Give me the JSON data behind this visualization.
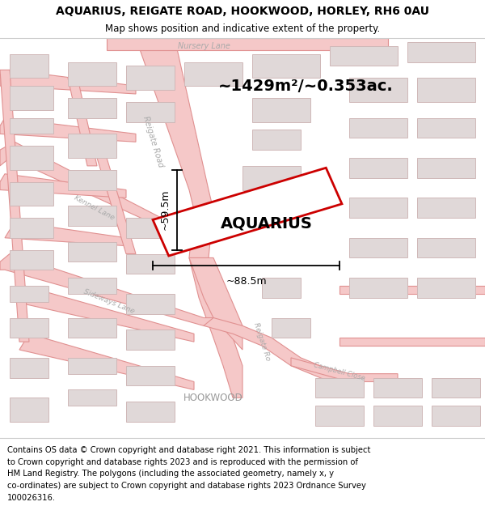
{
  "title": "AQUARIUS, REIGATE ROAD, HOOKWOOD, HORLEY, RH6 0AU",
  "subtitle": "Map shows position and indicative extent of the property.",
  "footer_lines": [
    "Contains OS data © Crown copyright and database right 2021. This information is subject",
    "to Crown copyright and database rights 2023 and is reproduced with the permission of",
    "HM Land Registry. The polygons (including the associated geometry, namely x, y",
    "co-ordinates) are subject to Crown copyright and database rights 2023 Ordnance Survey",
    "100026316."
  ],
  "area_text": "~1429m²/~0.353ac.",
  "property_label": "AQUARIUS",
  "dim_width": "~88.5m",
  "dim_height": "~59.5m",
  "map_bg": "#ffffff",
  "road_color": "#f5c8c8",
  "road_stroke": "#e09090",
  "road_lw": 0.8,
  "building_fill": "#e0d8d8",
  "building_stroke": "#d0b8b8",
  "building_lw": 0.7,
  "red_line_color": "#cc0000",
  "black_color": "#000000",
  "title_fontsize": 10,
  "subtitle_fontsize": 8.5,
  "footer_fontsize": 7.2,
  "area_fontsize": 14,
  "label_fontsize": 14,
  "dim_fontsize": 9,
  "road_label_color": "#aaaaaa",
  "road_label_size": 7
}
